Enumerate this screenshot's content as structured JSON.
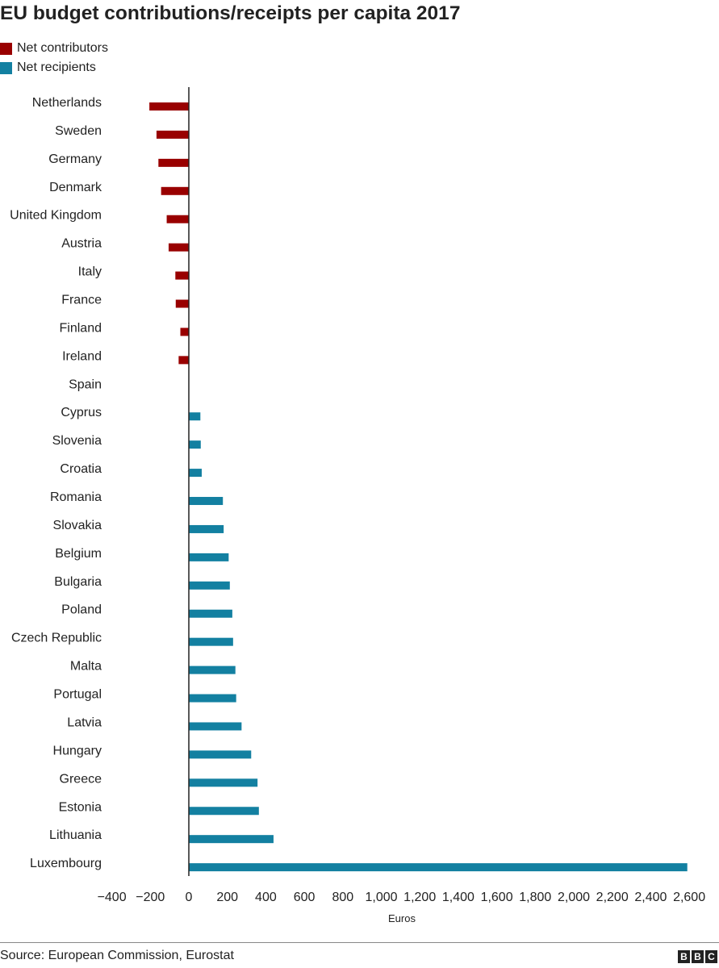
{
  "title": "EU budget contributions/receipts per capita 2017",
  "legend": {
    "items": [
      {
        "label": "Net contributors",
        "color": "#990000"
      },
      {
        "label": "Net recipients",
        "color": "#1380A1"
      }
    ]
  },
  "chart_data": {
    "type": "bar",
    "orientation": "horizontal",
    "title": "EU budget contributions/receipts per capita 2017",
    "xlabel": "Euros",
    "ylabel": "",
    "xlim": [
      -400,
      2600
    ],
    "xticks": [
      -400,
      -200,
      0,
      200,
      400,
      600,
      800,
      1000,
      1200,
      1400,
      1600,
      1800,
      2000,
      2200,
      2400,
      2600
    ],
    "xtick_labels": [
      "−400",
      "−200",
      "0",
      "200",
      "400",
      "600",
      "800",
      "1,000",
      "1,200",
      "1,400",
      "1,600",
      "1,800",
      "2,000",
      "2,200",
      "2,400",
      "2,600"
    ],
    "grid": false,
    "legend_position": "top-left",
    "categories": [
      "Netherlands",
      "Sweden",
      "Germany",
      "Denmark",
      "United Kingdom",
      "Austria",
      "Italy",
      "France",
      "Finland",
      "Ireland",
      "Spain",
      "Cyprus",
      "Slovenia",
      "Croatia",
      "Romania",
      "Slovakia",
      "Belgium",
      "Bulgaria",
      "Poland",
      "Czech Republic",
      "Malta",
      "Portugal",
      "Latvia",
      "Hungary",
      "Greece",
      "Estonia",
      "Lithuania",
      "Luxembourg"
    ],
    "values": [
      -205,
      -168,
      -158,
      -144,
      -115,
      -105,
      -70,
      -68,
      -44,
      -53,
      0,
      60,
      62,
      67,
      177,
      181,
      207,
      213,
      226,
      230,
      242,
      246,
      274,
      324,
      357,
      364,
      440,
      2590
    ],
    "colors": {
      "negative": "#990000",
      "positive": "#1380A1"
    }
  },
  "footer": {
    "source": "Source: European Commission, Eurostat",
    "logo": [
      "B",
      "B",
      "C"
    ]
  }
}
